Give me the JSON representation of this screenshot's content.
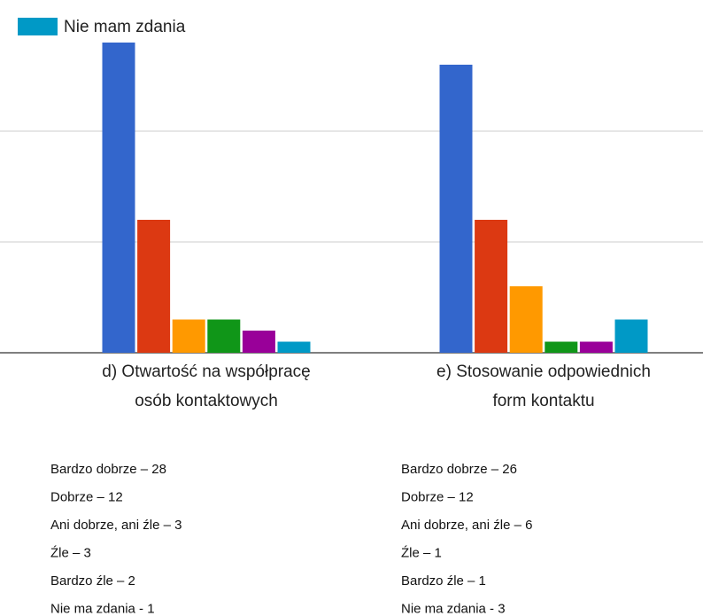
{
  "chart_data": {
    "type": "bar",
    "categories": [
      [
        "d) Otwartość na współpracę",
        "osób kontaktowych"
      ],
      [
        "e) Stosowanie odpowiednich",
        "form kontaktu"
      ]
    ],
    "series": [
      {
        "color": "#3366cc",
        "values": [
          28,
          26
        ]
      },
      {
        "color": "#dc3912",
        "values": [
          12,
          12
        ]
      },
      {
        "color": "#ff9900",
        "values": [
          3,
          6
        ]
      },
      {
        "color": "#109618",
        "values": [
          3,
          1
        ]
      },
      {
        "color": "#990099",
        "values": [
          2,
          1
        ]
      },
      {
        "name": "Nie mam zdania",
        "color": "#0099c6",
        "values": [
          1,
          3
        ]
      }
    ],
    "ylim": [
      0,
      30
    ],
    "yticks": [
      0,
      10,
      20
    ],
    "grid": true
  },
  "lists": [
    [
      "Bardzo dobrze – 28",
      "Dobrze – 12",
      "Ani dobrze, ani źle – 3",
      "Źle – 3",
      "Bardzo źle – 2",
      "Nie ma zdania - 1"
    ],
    [
      "Bardzo dobrze – 26",
      "Dobrze – 12",
      "Ani dobrze, ani źle – 6",
      "Źle – 1",
      "Bardzo źle – 1",
      "Nie ma zdania - 3"
    ]
  ]
}
